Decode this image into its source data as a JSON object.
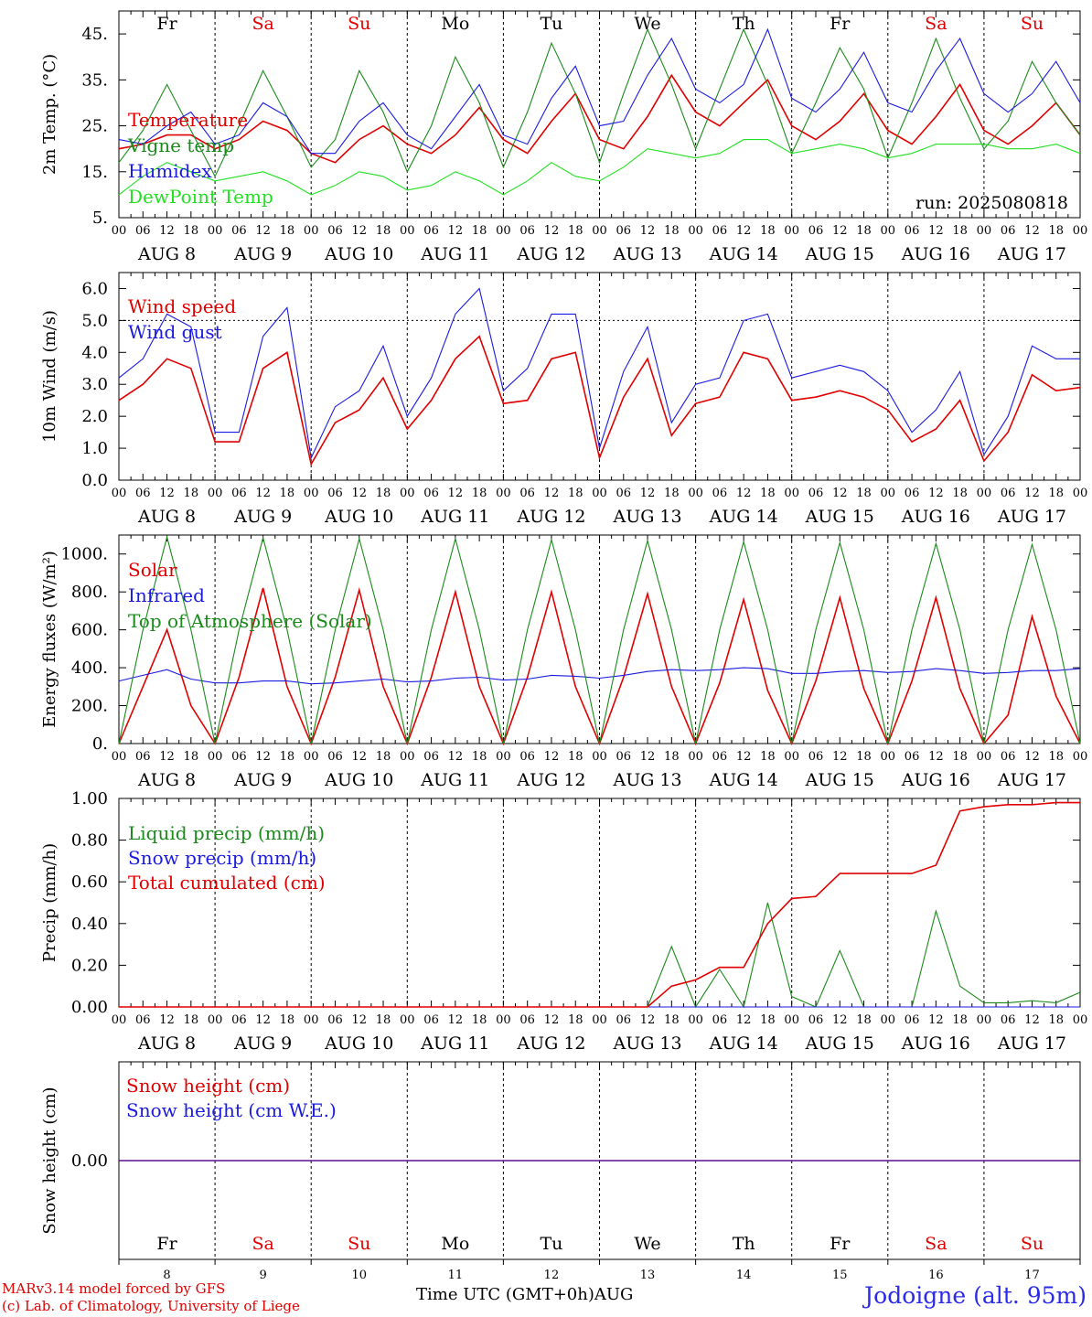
{
  "chart_data": [
    {
      "type": "line",
      "ylabel": "2m Temp. (°C)",
      "ylim": [
        5,
        50
      ],
      "yticks": [
        "5.",
        "15.",
        "25.",
        "35.",
        "45."
      ],
      "x_hours": [
        0,
        6,
        12,
        18,
        24,
        30,
        36,
        42,
        48,
        54,
        60,
        66,
        72,
        78,
        84,
        90,
        96,
        102,
        108,
        114,
        120,
        126,
        132,
        138,
        144,
        150,
        156,
        162,
        168,
        174,
        180,
        186,
        192,
        198,
        204,
        210,
        216,
        222,
        228,
        234,
        240
      ],
      "annotation": "run: 2025080818",
      "series": [
        {
          "name": "Temperature",
          "color": "#e00000",
          "values": [
            20,
            21,
            23,
            23,
            20,
            22,
            26,
            24,
            19,
            17,
            22,
            25,
            21,
            19,
            23,
            29,
            22,
            19,
            26,
            32,
            22,
            20,
            27,
            36,
            28,
            25,
            30,
            35,
            25,
            22,
            26,
            32,
            24,
            21,
            27,
            34,
            24,
            21,
            25,
            30,
            23
          ]
        },
        {
          "name": "Vigne temp",
          "color": "#1a8a1a",
          "values": [
            17,
            24,
            34,
            24,
            14,
            25,
            37,
            27,
            16,
            22,
            37,
            28,
            15,
            25,
            40,
            30,
            16,
            28,
            43,
            32,
            17,
            32,
            46,
            34,
            20,
            33,
            46,
            34,
            19,
            30,
            42,
            33,
            18,
            30,
            44,
            31,
            20,
            26,
            39,
            30,
            23
          ]
        },
        {
          "name": "Humidex",
          "color": "#1a1ae0",
          "values": [
            22,
            21,
            25,
            28,
            21,
            23,
            30,
            27,
            19,
            19,
            26,
            30,
            23,
            20,
            27,
            34,
            23,
            21,
            31,
            38,
            25,
            26,
            36,
            44,
            33,
            30,
            34,
            46,
            31,
            28,
            33,
            41,
            30,
            28,
            37,
            44,
            32,
            28,
            32,
            39,
            30
          ]
        },
        {
          "name": "DewPoint Temp",
          "color": "#22e022",
          "values": [
            10,
            14,
            17,
            15,
            13,
            14,
            15,
            13,
            10,
            12,
            15,
            14,
            11,
            12,
            15,
            13,
            10,
            13,
            17,
            14,
            13,
            16,
            20,
            19,
            18,
            19,
            22,
            22,
            19,
            20,
            21,
            20,
            18,
            19,
            21,
            21,
            21,
            20,
            20,
            21,
            19
          ]
        }
      ]
    },
    {
      "type": "line",
      "ylabel": "10m Wind (m/s)",
      "ylim": [
        0,
        6.5
      ],
      "yticks": [
        "0.0",
        "1.0",
        "2.0",
        "3.0",
        "4.0",
        "5.0",
        "6.0"
      ],
      "reference_line": 5,
      "x_hours": [
        0,
        6,
        12,
        18,
        24,
        30,
        36,
        42,
        48,
        54,
        60,
        66,
        72,
        78,
        84,
        90,
        96,
        102,
        108,
        114,
        120,
        126,
        132,
        138,
        144,
        150,
        156,
        162,
        168,
        174,
        180,
        186,
        192,
        198,
        204,
        210,
        216,
        222,
        228,
        234,
        240
      ],
      "series": [
        {
          "name": "Wind speed",
          "color": "#e00000",
          "values": [
            2.5,
            3.0,
            3.8,
            3.5,
            1.2,
            1.2,
            3.5,
            4.0,
            0.5,
            1.8,
            2.2,
            3.2,
            1.6,
            2.5,
            3.8,
            4.5,
            2.4,
            2.5,
            3.8,
            4.0,
            0.7,
            2.6,
            3.8,
            1.4,
            2.4,
            2.6,
            4.0,
            3.8,
            2.5,
            2.6,
            2.8,
            2.6,
            2.2,
            1.2,
            1.6,
            2.5,
            0.6,
            1.5,
            3.3,
            2.8,
            2.9
          ]
        },
        {
          "name": "Wind gust",
          "color": "#1a1ae0",
          "values": [
            3.2,
            3.8,
            5.2,
            4.8,
            1.5,
            1.5,
            4.5,
            5.4,
            0.7,
            2.3,
            2.8,
            4.2,
            2.0,
            3.2,
            5.2,
            6.0,
            2.8,
            3.5,
            5.2,
            5.2,
            1.0,
            3.4,
            4.8,
            1.8,
            3.0,
            3.2,
            5.0,
            5.2,
            3.2,
            3.4,
            3.6,
            3.4,
            2.8,
            1.5,
            2.2,
            3.4,
            0.8,
            2.0,
            4.2,
            3.8,
            3.8
          ]
        }
      ]
    },
    {
      "type": "line",
      "ylabel": "Energy fluxes (W/m²)",
      "ylim": [
        0,
        1100
      ],
      "yticks": [
        "0.",
        "200.",
        "400.",
        "600.",
        "800.",
        "1000."
      ],
      "x_hours": [
        0,
        6,
        12,
        18,
        24,
        30,
        36,
        42,
        48,
        54,
        60,
        66,
        72,
        78,
        84,
        90,
        96,
        102,
        108,
        114,
        120,
        126,
        132,
        138,
        144,
        150,
        156,
        162,
        168,
        174,
        180,
        186,
        192,
        198,
        204,
        210,
        216,
        222,
        228,
        234,
        240
      ],
      "series": [
        {
          "name": "Solar",
          "color": "#e00000",
          "values": [
            0,
            300,
            600,
            200,
            0,
            350,
            820,
            300,
            0,
            350,
            810,
            300,
            0,
            350,
            800,
            300,
            0,
            350,
            800,
            300,
            0,
            350,
            790,
            300,
            0,
            320,
            760,
            280,
            0,
            330,
            770,
            290,
            0,
            330,
            770,
            290,
            0,
            150,
            670,
            250,
            0
          ]
        },
        {
          "name": "Infrared",
          "color": "#1a1ae0",
          "values": [
            330,
            360,
            390,
            340,
            320,
            320,
            330,
            330,
            315,
            320,
            330,
            340,
            325,
            330,
            345,
            350,
            335,
            340,
            360,
            355,
            345,
            360,
            380,
            390,
            385,
            390,
            400,
            395,
            370,
            370,
            380,
            385,
            375,
            380,
            395,
            385,
            370,
            375,
            385,
            385,
            395
          ]
        },
        {
          "name": "Top of Atmosphere (Solar)",
          "color": "#1a8a1a",
          "values": [
            0,
            600,
            1090,
            600,
            0,
            600,
            1085,
            600,
            0,
            600,
            1080,
            600,
            0,
            600,
            1080,
            600,
            0,
            600,
            1075,
            600,
            0,
            600,
            1070,
            600,
            0,
            600,
            1065,
            600,
            0,
            600,
            1060,
            600,
            0,
            600,
            1055,
            600,
            0,
            600,
            1050,
            600,
            0
          ]
        }
      ]
    },
    {
      "type": "line",
      "ylabel": "Precip (mm/h)",
      "ylim": [
        0,
        1.0
      ],
      "yticks": [
        "0.00",
        "0.20",
        "0.40",
        "0.60",
        "0.80",
        "1.00"
      ],
      "x_hours": [
        0,
        6,
        12,
        18,
        24,
        30,
        36,
        42,
        48,
        54,
        60,
        66,
        72,
        78,
        84,
        90,
        96,
        102,
        108,
        114,
        120,
        126,
        132,
        138,
        144,
        150,
        156,
        162,
        168,
        174,
        180,
        186,
        192,
        198,
        204,
        210,
        216,
        222,
        228,
        234,
        240
      ],
      "series": [
        {
          "name": "Liquid precip (mm/h)",
          "color": "#1a8a1a",
          "values": [
            0,
            0,
            0,
            0,
            0,
            0,
            0,
            0,
            0,
            0,
            0,
            0,
            0,
            0,
            0,
            0,
            0,
            0,
            0,
            0,
            0,
            0,
            0,
            0.29,
            0.0,
            0.18,
            0.0,
            0.5,
            0.05,
            0.0,
            0.27,
            0.0,
            0.0,
            0.0,
            0.46,
            0.1,
            0.02,
            0.02,
            0.03,
            0.02,
            0.07
          ]
        },
        {
          "name": "Snow precip (mm/h)",
          "color": "#1a1ae0",
          "values": [
            0,
            0,
            0,
            0,
            0,
            0,
            0,
            0,
            0,
            0,
            0,
            0,
            0,
            0,
            0,
            0,
            0,
            0,
            0,
            0,
            0,
            0,
            0,
            0,
            0,
            0,
            0,
            0,
            0,
            0,
            0,
            0,
            0,
            0,
            0,
            0,
            0,
            0,
            0,
            0,
            0
          ]
        },
        {
          "name": "Total cumulated (cm)",
          "color": "#e00000",
          "values": [
            0,
            0,
            0,
            0,
            0,
            0,
            0,
            0,
            0,
            0,
            0,
            0,
            0,
            0,
            0,
            0,
            0,
            0,
            0,
            0,
            0,
            0,
            0,
            0.1,
            0.13,
            0.19,
            0.19,
            0.4,
            0.52,
            0.53,
            0.64,
            0.64,
            0.64,
            0.64,
            0.68,
            0.94,
            0.96,
            0.97,
            0.97,
            0.98,
            0.98
          ]
        }
      ]
    },
    {
      "type": "line",
      "ylabel": "Snow height (cm)",
      "ylim": [
        -1,
        1
      ],
      "yticks": [
        "0.00"
      ],
      "x_hours": [
        0,
        240
      ],
      "series": [
        {
          "name": "Snow height (cm)",
          "color": "#e00000",
          "values": [
            0,
            0
          ]
        },
        {
          "name": "Snow height (cm W.E.)",
          "color": "#1a1ae0",
          "values": [
            0,
            0
          ]
        }
      ]
    }
  ],
  "x_axis": {
    "hour_ticks": [
      "00",
      "06",
      "12",
      "18"
    ],
    "day_labels": [
      "AUG  8",
      "AUG  9",
      "AUG 10",
      "AUG 11",
      "AUG 12",
      "AUG 13",
      "AUG 14",
      "AUG 15",
      "AUG 16",
      "AUG 17"
    ],
    "weekdays": [
      {
        "label": "Fr",
        "color": "#000000"
      },
      {
        "label": "Sa",
        "color": "#e00000"
      },
      {
        "label": "Su",
        "color": "#e00000"
      },
      {
        "label": "Mo",
        "color": "#000000"
      },
      {
        "label": "Tu",
        "color": "#000000"
      },
      {
        "label": "We",
        "color": "#000000"
      },
      {
        "label": "Th",
        "color": "#000000"
      },
      {
        "label": "Fr",
        "color": "#000000"
      },
      {
        "label": "Sa",
        "color": "#e00000"
      },
      {
        "label": "Su",
        "color": "#e00000"
      }
    ],
    "bottom_day_numbers": [
      "8",
      "9",
      "10",
      "11",
      "12",
      "13",
      "14",
      "15",
      "16",
      "17"
    ]
  },
  "footer": {
    "model_line": "MARv3.14 model forced by GFS",
    "credit_line": "(c) Lab. of Climatology, University of Liege",
    "time_axis_label": "Time UTC (GMT+0h)AUG",
    "station": "Jodoigne (alt. 95m)"
  }
}
